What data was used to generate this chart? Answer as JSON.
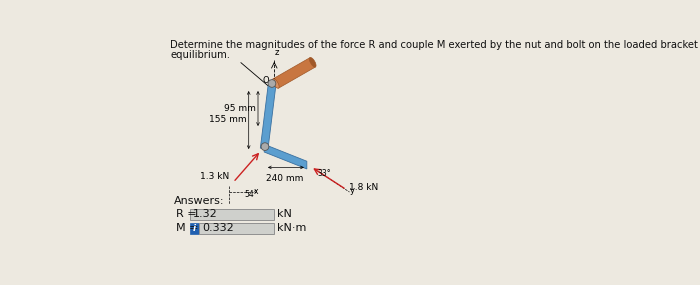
{
  "title_line1": "Determine the magnitudes of the force R and couple M exerted by the nut and bolt on the loaded bracket at O to maintain",
  "title_line2": "equilibrium.",
  "bg_color": "#ede9e0",
  "diagram": {
    "dim_95": "95 mm",
    "dim_155": "155 mm",
    "dim_240": "240 mm",
    "force_left": "1.3 kN",
    "force_right": "1.8 kN",
    "angle_left": "54°",
    "angle_right": "33°",
    "label_O": "O",
    "label_z": "z",
    "label_x": "x",
    "label_y": "y"
  },
  "bracket_color": "#5b9ecf",
  "bracket_edge": "#3a70a0",
  "cylinder_body": "#c87640",
  "cylinder_light": "#d99060",
  "cylinder_dark": "#a05828",
  "gray_joint": "#888888",
  "answers_label": "Answers:",
  "R_label": "R =",
  "R_value": "1.32",
  "R_unit": "kN",
  "M_label": "M =",
  "M_value": "0.332",
  "M_unit": "kN·m",
  "M_box_color": "#2060b0",
  "input_bg": "#cfd0cc",
  "input_border": "#909090",
  "text_color": "#111111",
  "font_size_title": 7.2,
  "font_size_answers": 8.0,
  "font_size_values": 8.0,
  "font_size_diagram": 6.5
}
